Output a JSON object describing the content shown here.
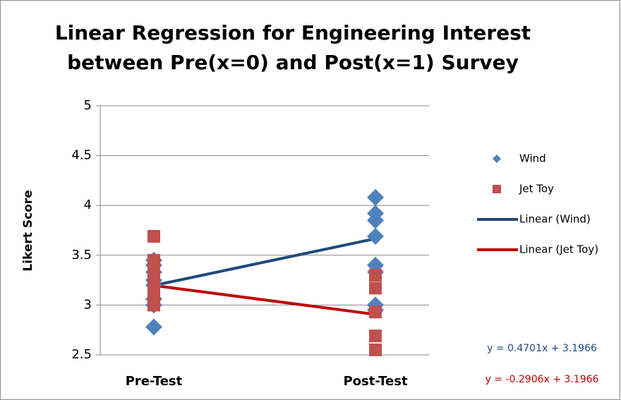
{
  "chart_data": {
    "type": "scatter",
    "title": [
      "Linear Regression for Engineering Interest",
      "between Pre(x=0) and Post(x=1) Survey"
    ],
    "y_label": "Likert Score",
    "xlim": [
      -0.242,
      1.242
    ],
    "xticks": [
      {
        "value": 0,
        "label": "Pre-Test"
      },
      {
        "value": 1,
        "label": "Post-Test"
      }
    ],
    "ylim": [
      2.5,
      5
    ],
    "yticks": [
      2.5,
      3,
      3.5,
      4,
      4.5,
      5
    ],
    "grid": true,
    "legend": "right",
    "series": [
      {
        "name": "Wind",
        "color": "#4f81bd",
        "marker": "diamond",
        "x": [
          0,
          0,
          0,
          0,
          0,
          0,
          0,
          0,
          1,
          1,
          1,
          1,
          1,
          1,
          1,
          1
        ],
        "values": [
          2.78,
          3.0,
          3.06,
          3.2,
          3.25,
          3.33,
          3.4,
          3.45,
          4.08,
          3.92,
          3.85,
          3.69,
          3.4,
          3.33,
          3.0,
          2.95
        ]
      },
      {
        "name": "Jet Toy",
        "color": "#c0504d",
        "marker": "square",
        "x": [
          0,
          0,
          0,
          0,
          0,
          0,
          0,
          0,
          1,
          1,
          1,
          1,
          1
        ],
        "values": [
          3.69,
          3.45,
          3.4,
          3.3,
          3.2,
          3.1,
          3.05,
          3.0,
          3.3,
          3.17,
          2.93,
          2.69,
          2.55
        ]
      },
      {
        "name": "Linear (Wind)",
        "color": "#1f497d",
        "marker": "line",
        "x": [
          0,
          1
        ],
        "values": [
          3.1966,
          3.6667
        ]
      },
      {
        "name": "Linear (Jet Toy)",
        "color": "#c00000",
        "marker": "line",
        "x": [
          0,
          1
        ],
        "values": [
          3.1966,
          2.906
        ]
      }
    ],
    "annotations": [
      {
        "text": "y = 0.4701x + 3.1966",
        "color": "#1f497d"
      },
      {
        "text": "y = -0.2906x + 3.1966",
        "color": "#c00000"
      }
    ]
  }
}
